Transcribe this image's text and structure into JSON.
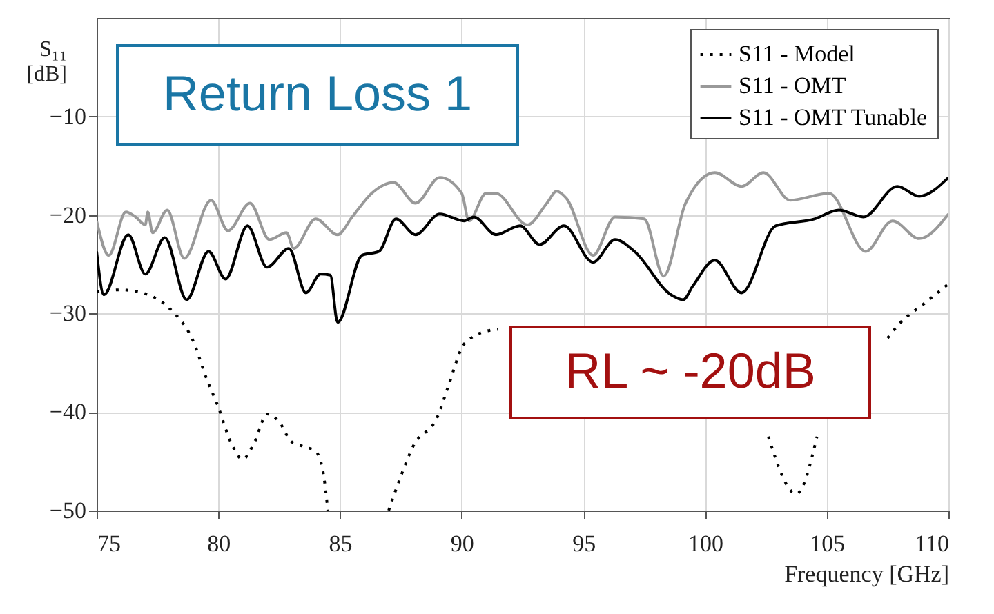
{
  "chart_data": {
    "type": "line",
    "xlabel": "Frequency [GHz]",
    "ylabel": "S₁₁ [dB]",
    "xlim": [
      75,
      110
    ],
    "xticks": [
      75,
      80,
      85,
      90,
      95,
      100,
      105,
      110
    ],
    "ylim": [
      -50,
      0
    ],
    "yticks": [
      -50,
      -40,
      -30,
      -20,
      -10
    ],
    "grid": true,
    "legend": "top right",
    "annotations": [
      "Return Loss 1",
      "RL ~ -20dB"
    ],
    "series": [
      {
        "name": "S11 - Model",
        "color": "#000000",
        "line_style": "dotted",
        "x": [
          75,
          76,
          77,
          78,
          79,
          79.5,
          80,
          80.5,
          81,
          81.5,
          82,
          82.5,
          83,
          83.5,
          84,
          84.3,
          84.5,
          85,
          87,
          87.5,
          88,
          89,
          89.5,
          90,
          90.5,
          91,
          91.5,
          92,
          102.6,
          103.75,
          104.6,
          106,
          107.5,
          108,
          109,
          110
        ],
        "values": [
          -27.8,
          -27.6,
          -28,
          -29.5,
          -33,
          -36.5,
          -39.5,
          -43,
          -44.8,
          -43,
          -40.2,
          -41,
          -43,
          -43.5,
          -44,
          -46,
          -50,
          null,
          -50,
          -46.5,
          -43.5,
          -40.5,
          -37,
          -33.5,
          -32.3,
          -31.8,
          -31.6,
          null,
          -42.5,
          -48.3,
          -42.5,
          null,
          -32.5,
          -31,
          -29,
          -27
        ]
      },
      {
        "name": "S11 - OMT",
        "color": "#999999",
        "line_style": "solid",
        "x": [
          75,
          75.5,
          76.2,
          76.6,
          77,
          77.1,
          77.3,
          77.9,
          78.6,
          79.7,
          80.4,
          81.3,
          82.1,
          82.8,
          83.1,
          84,
          84.9,
          85.5,
          86.3,
          87.2,
          88.1,
          89.1,
          90,
          90.3,
          91,
          91.4,
          92.7,
          93.5,
          93.9,
          94.3,
          95.4,
          96.3,
          97.5,
          98.3,
          99.2,
          100.4,
          101.5,
          102.4,
          103.5,
          105.1,
          106.6,
          107.7,
          108.8,
          110
        ],
        "values": [
          -20.6,
          -24.1,
          -19.7,
          -20.2,
          -21,
          -19.7,
          -21.8,
          -19.5,
          -24.4,
          -18.5,
          -21.6,
          -18.8,
          -22.5,
          -21.8,
          -23.4,
          -20.4,
          -22,
          -20.2,
          -17.8,
          -16.7,
          -18.8,
          -16.2,
          -17.8,
          -20.6,
          -17.8,
          -17.8,
          -21,
          -18.8,
          -17.6,
          -18.3,
          -24.1,
          -20.2,
          -20.4,
          -26.2,
          -18.8,
          -15.7,
          -17.1,
          -15.7,
          -18.5,
          -17.8,
          -23.7,
          -20.6,
          -22.4,
          -19.9
        ]
      },
      {
        "name": "S11 - OMT Tunable",
        "color": "#000000",
        "line_style": "solid",
        "x": [
          75,
          75.3,
          76.3,
          77,
          77.8,
          78.7,
          79.6,
          80.3,
          81.2,
          82,
          82.9,
          83.6,
          84.2,
          84.6,
          84.9,
          85.9,
          86.6,
          87.3,
          88.1,
          89.1,
          90.1,
          90.5,
          91.4,
          92.4,
          93.2,
          94.2,
          95.4,
          96.3,
          97.1,
          98.6,
          99.1,
          99.5,
          100.4,
          101.5,
          102.9,
          104.5,
          105.5,
          106.5,
          107.9,
          108.8,
          110
        ],
        "values": [
          -23.7,
          -28.1,
          -22,
          -26,
          -22.3,
          -28.6,
          -23.7,
          -26.5,
          -21.1,
          -25.3,
          -23.4,
          -27.9,
          -26,
          -26.1,
          -30.9,
          -24.1,
          -23.7,
          -20.4,
          -22,
          -19.9,
          -20.6,
          -20.2,
          -22,
          -21.1,
          -23,
          -21.1,
          -24.8,
          -22.5,
          -23.7,
          -28.1,
          -28.6,
          -27.2,
          -24.6,
          -27.9,
          -21.1,
          -20.4,
          -19.5,
          -20.2,
          -17.1,
          -18.1,
          -16.2
        ]
      }
    ]
  }
}
